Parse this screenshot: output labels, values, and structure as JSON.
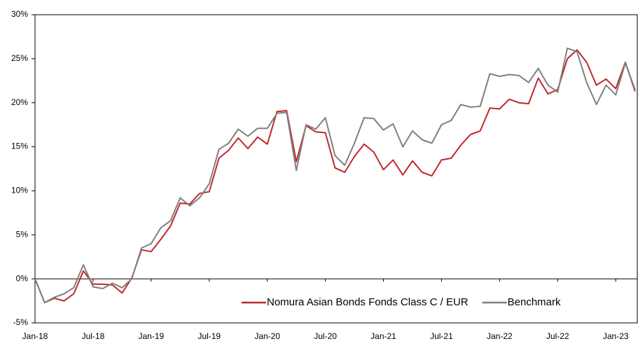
{
  "chart_data": {
    "type": "line",
    "categories": [
      "Jan-18",
      null,
      null,
      null,
      null,
      null,
      "Jul-18",
      null,
      null,
      null,
      null,
      null,
      "Jan-19",
      null,
      null,
      null,
      null,
      null,
      "Jul-19",
      null,
      null,
      null,
      null,
      null,
      "Jan-20",
      null,
      null,
      null,
      null,
      null,
      "Jul-20",
      null,
      null,
      null,
      null,
      null,
      "Jan-21",
      null,
      null,
      null,
      null,
      null,
      "Jul-21",
      null,
      null,
      null,
      null,
      null,
      "Jan-22",
      null,
      null,
      null,
      null,
      null,
      "Jul-22",
      null,
      null,
      null,
      null,
      null,
      "Jan-23",
      null,
      null
    ],
    "series": [
      {
        "name": "Nomura Asian Bonds Fonds Class C / EUR",
        "color": "#c0282d",
        "values": [
          0,
          -2.7,
          -2.2,
          -2.5,
          -1.7,
          0.9,
          -0.6,
          -0.6,
          -0.7,
          -1.6,
          0.1,
          3.3,
          3.1,
          4.5,
          6.0,
          8.6,
          8.5,
          9.7,
          9.9,
          13.7,
          14.6,
          16.0,
          14.8,
          16.1,
          15.3,
          19.0,
          19.1,
          13.3,
          17.4,
          16.7,
          16.6,
          12.6,
          12.1,
          13.9,
          15.3,
          14.4,
          12.4,
          13.5,
          11.8,
          13.4,
          12.1,
          11.7,
          13.5,
          13.7,
          15.2,
          16.4,
          16.8,
          19.4,
          19.3,
          20.4,
          20.0,
          19.9,
          22.8,
          21.0,
          21.5,
          25.0,
          26.0,
          24.6,
          22.0,
          22.7,
          21.6,
          24.6,
          21.3
        ]
      },
      {
        "name": "Benchmark",
        "color": "#808080",
        "values": [
          0,
          -2.7,
          -2.1,
          -1.7,
          -1.0,
          1.6,
          -0.9,
          -1.1,
          -0.5,
          -1.0,
          0.0,
          3.5,
          4.0,
          5.8,
          6.6,
          9.2,
          8.3,
          9.2,
          10.8,
          14.7,
          15.4,
          17.0,
          16.2,
          17.1,
          17.1,
          18.8,
          18.9,
          12.3,
          17.5,
          17.0,
          18.3,
          14.0,
          12.9,
          15.4,
          18.3,
          18.2,
          16.9,
          17.6,
          15.0,
          16.8,
          15.8,
          15.4,
          17.5,
          18.0,
          19.8,
          19.5,
          19.6,
          23.3,
          23.0,
          23.2,
          23.1,
          22.3,
          23.9,
          22.0,
          21.2,
          26.2,
          25.8,
          22.3,
          19.8,
          22.0,
          20.9,
          24.5,
          21.5
        ]
      }
    ],
    "ylim": [
      -5,
      30
    ],
    "yticks": [
      {
        "value": -5,
        "label": "-5%"
      },
      {
        "value": 0,
        "label": "0%"
      },
      {
        "value": 5,
        "label": "5%"
      },
      {
        "value": 10,
        "label": "10%"
      },
      {
        "value": 15,
        "label": "15%"
      },
      {
        "value": 20,
        "label": "20%"
      },
      {
        "value": 25,
        "label": "25%"
      },
      {
        "value": 30,
        "label": "30%"
      }
    ],
    "grid": false,
    "legend": "lower right"
  }
}
